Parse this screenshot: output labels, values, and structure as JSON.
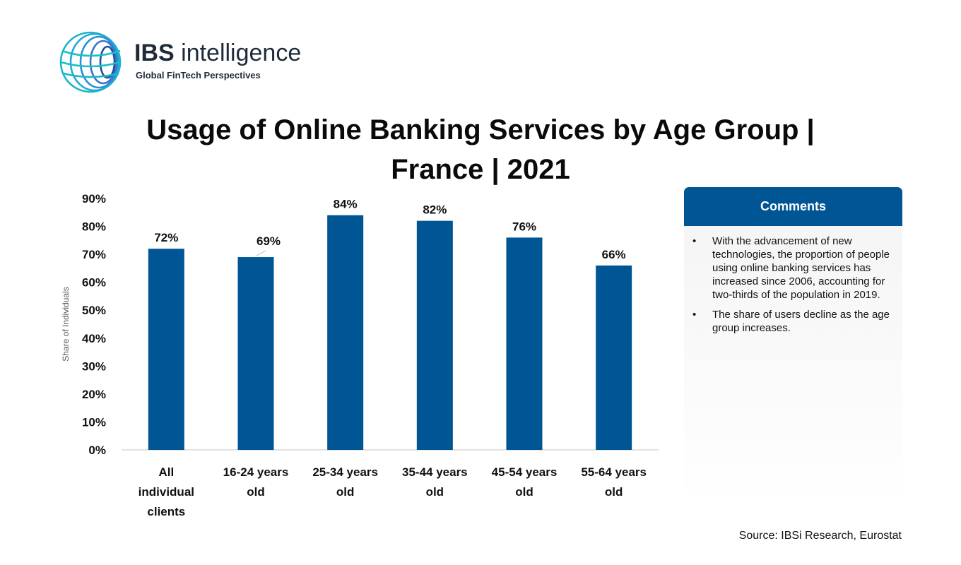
{
  "brand": {
    "name_bold": "IBS",
    "name_rest": " intelligence",
    "tagline": "Global FinTech Perspectives",
    "logo_icon": "globe-arcs-icon",
    "colors": {
      "teal": "#1eb5c9",
      "navy": "#1f2b3a"
    }
  },
  "title": {
    "line1": "Usage of Online Banking Services by Age Group |",
    "line2": "France | 2021"
  },
  "chart_data": {
    "type": "bar",
    "categories": [
      [
        "All",
        "individual",
        "clients"
      ],
      [
        "16-24 years",
        "old"
      ],
      [
        "25-34 years",
        "old"
      ],
      [
        "35-44 years",
        "old"
      ],
      [
        "45-54 years",
        "old"
      ],
      [
        "55-64 years",
        "old"
      ]
    ],
    "values": [
      72,
      69,
      84,
      82,
      76,
      66
    ],
    "data_labels": [
      "72%",
      "69%",
      "84%",
      "82%",
      "76%",
      "66%"
    ],
    "ylabel": "Share of Individuals",
    "ylim": [
      0,
      90
    ],
    "yticks": [
      "0%",
      "10%",
      "20%",
      "30%",
      "40%",
      "50%",
      "60%",
      "70%",
      "80%",
      "90%"
    ],
    "bar_color": "#005594",
    "grid": false
  },
  "comments": {
    "heading": "Comments",
    "items": [
      "With the advancement of new technologies, the proportion of people using online banking services has increased since 2006, accounting for two-thirds of the population in 2019.",
      "The share of users decline as the age group increases."
    ],
    "header_color": "#005594"
  },
  "source": "Source: IBSi Research, Eurostat"
}
